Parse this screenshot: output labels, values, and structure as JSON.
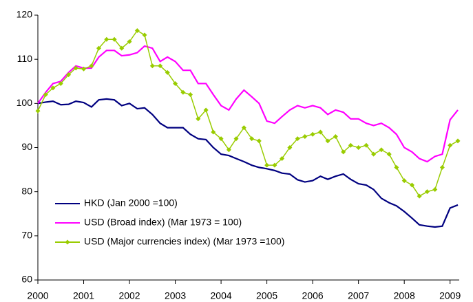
{
  "chart_data": {
    "type": "line",
    "x": [
      2000,
      2000.17,
      2000.33,
      2000.5,
      2000.67,
      2000.83,
      2001,
      2001.17,
      2001.33,
      2001.5,
      2001.67,
      2001.83,
      2002,
      2002.17,
      2002.33,
      2002.5,
      2002.67,
      2002.83,
      2003,
      2003.17,
      2003.33,
      2003.5,
      2003.67,
      2003.83,
      2004,
      2004.17,
      2004.33,
      2004.5,
      2004.67,
      2004.83,
      2005,
      2005.17,
      2005.33,
      2005.5,
      2005.67,
      2005.83,
      2006,
      2006.17,
      2006.33,
      2006.5,
      2006.67,
      2006.83,
      2007,
      2007.17,
      2007.33,
      2007.5,
      2007.67,
      2007.83,
      2008,
      2008.17,
      2008.33,
      2008.5,
      2008.67,
      2008.83,
      2009,
      2009.17
    ],
    "series": [
      {
        "name": "HKD (Jan 2000 =100)",
        "color": "#000080",
        "marker": false,
        "values": [
          100,
          100.3,
          100.5,
          99.7,
          99.8,
          100.5,
          100.2,
          99.2,
          100.8,
          101,
          100.8,
          99.5,
          100,
          98.8,
          99,
          97.5,
          95.5,
          94.5,
          94.5,
          94.5,
          93,
          92,
          91.8,
          90,
          88.5,
          88.2,
          87.5,
          86.8,
          86,
          85.5,
          85.2,
          84.8,
          84.2,
          84,
          82.7,
          82.2,
          82.5,
          83.5,
          82.8,
          83.5,
          84,
          82.8,
          81.8,
          81.5,
          80.5,
          78.5,
          77.5,
          76.8,
          75.5,
          74,
          72.5,
          72.2,
          72,
          72.2,
          76.3,
          77
        ]
      },
      {
        "name": "USD (Broad index) (Mar 1973 = 100)",
        "color": "#ff00ff",
        "marker": false,
        "values": [
          100,
          102.5,
          104.5,
          105,
          107,
          108.5,
          108,
          108,
          110.5,
          112,
          112,
          110.8,
          111,
          111.5,
          113,
          112.5,
          109.5,
          110.5,
          109.5,
          107.5,
          107.5,
          104.5,
          104.5,
          102,
          99.5,
          98.5,
          101,
          103,
          101.5,
          100,
          96,
          95.5,
          97,
          98.5,
          99.5,
          99,
          99.5,
          99,
          97.5,
          98.5,
          98,
          96.5,
          96.5,
          95.5,
          95,
          95.5,
          94.5,
          93,
          90,
          89,
          87.5,
          86.8,
          88,
          88.5,
          96.3,
          98.5
        ]
      },
      {
        "name": "USD (Major currencies index) (Mar 1973 =100)",
        "color": "#99cc00",
        "marker": true,
        "values": [
          98.3,
          102,
          103.5,
          104.5,
          106.5,
          108,
          107.8,
          108.5,
          112.5,
          114.5,
          114.5,
          112.5,
          114,
          116.5,
          115.5,
          108.5,
          108.5,
          107,
          104.5,
          102.5,
          102,
          96.5,
          98.5,
          93.5,
          92,
          89.5,
          92,
          94.5,
          92,
          91.5,
          86,
          86,
          87.5,
          90,
          92,
          92.5,
          93,
          93.5,
          91.5,
          92.5,
          89,
          90.5,
          90,
          90.5,
          88.5,
          89.5,
          88.5,
          85.5,
          82.5,
          81.5,
          79,
          80,
          80.5,
          85.5,
          90.5,
          91.5
        ]
      }
    ],
    "xlim": [
      2000,
      2009.2
    ],
    "xticks": [
      2000,
      2001,
      2002,
      2003,
      2004,
      2005,
      2006,
      2007,
      2008,
      2009
    ],
    "ylim": [
      60,
      120
    ],
    "yticks": [
      60,
      70,
      80,
      90,
      100,
      110,
      120
    ],
    "grid": false,
    "legend": "lower-left"
  }
}
